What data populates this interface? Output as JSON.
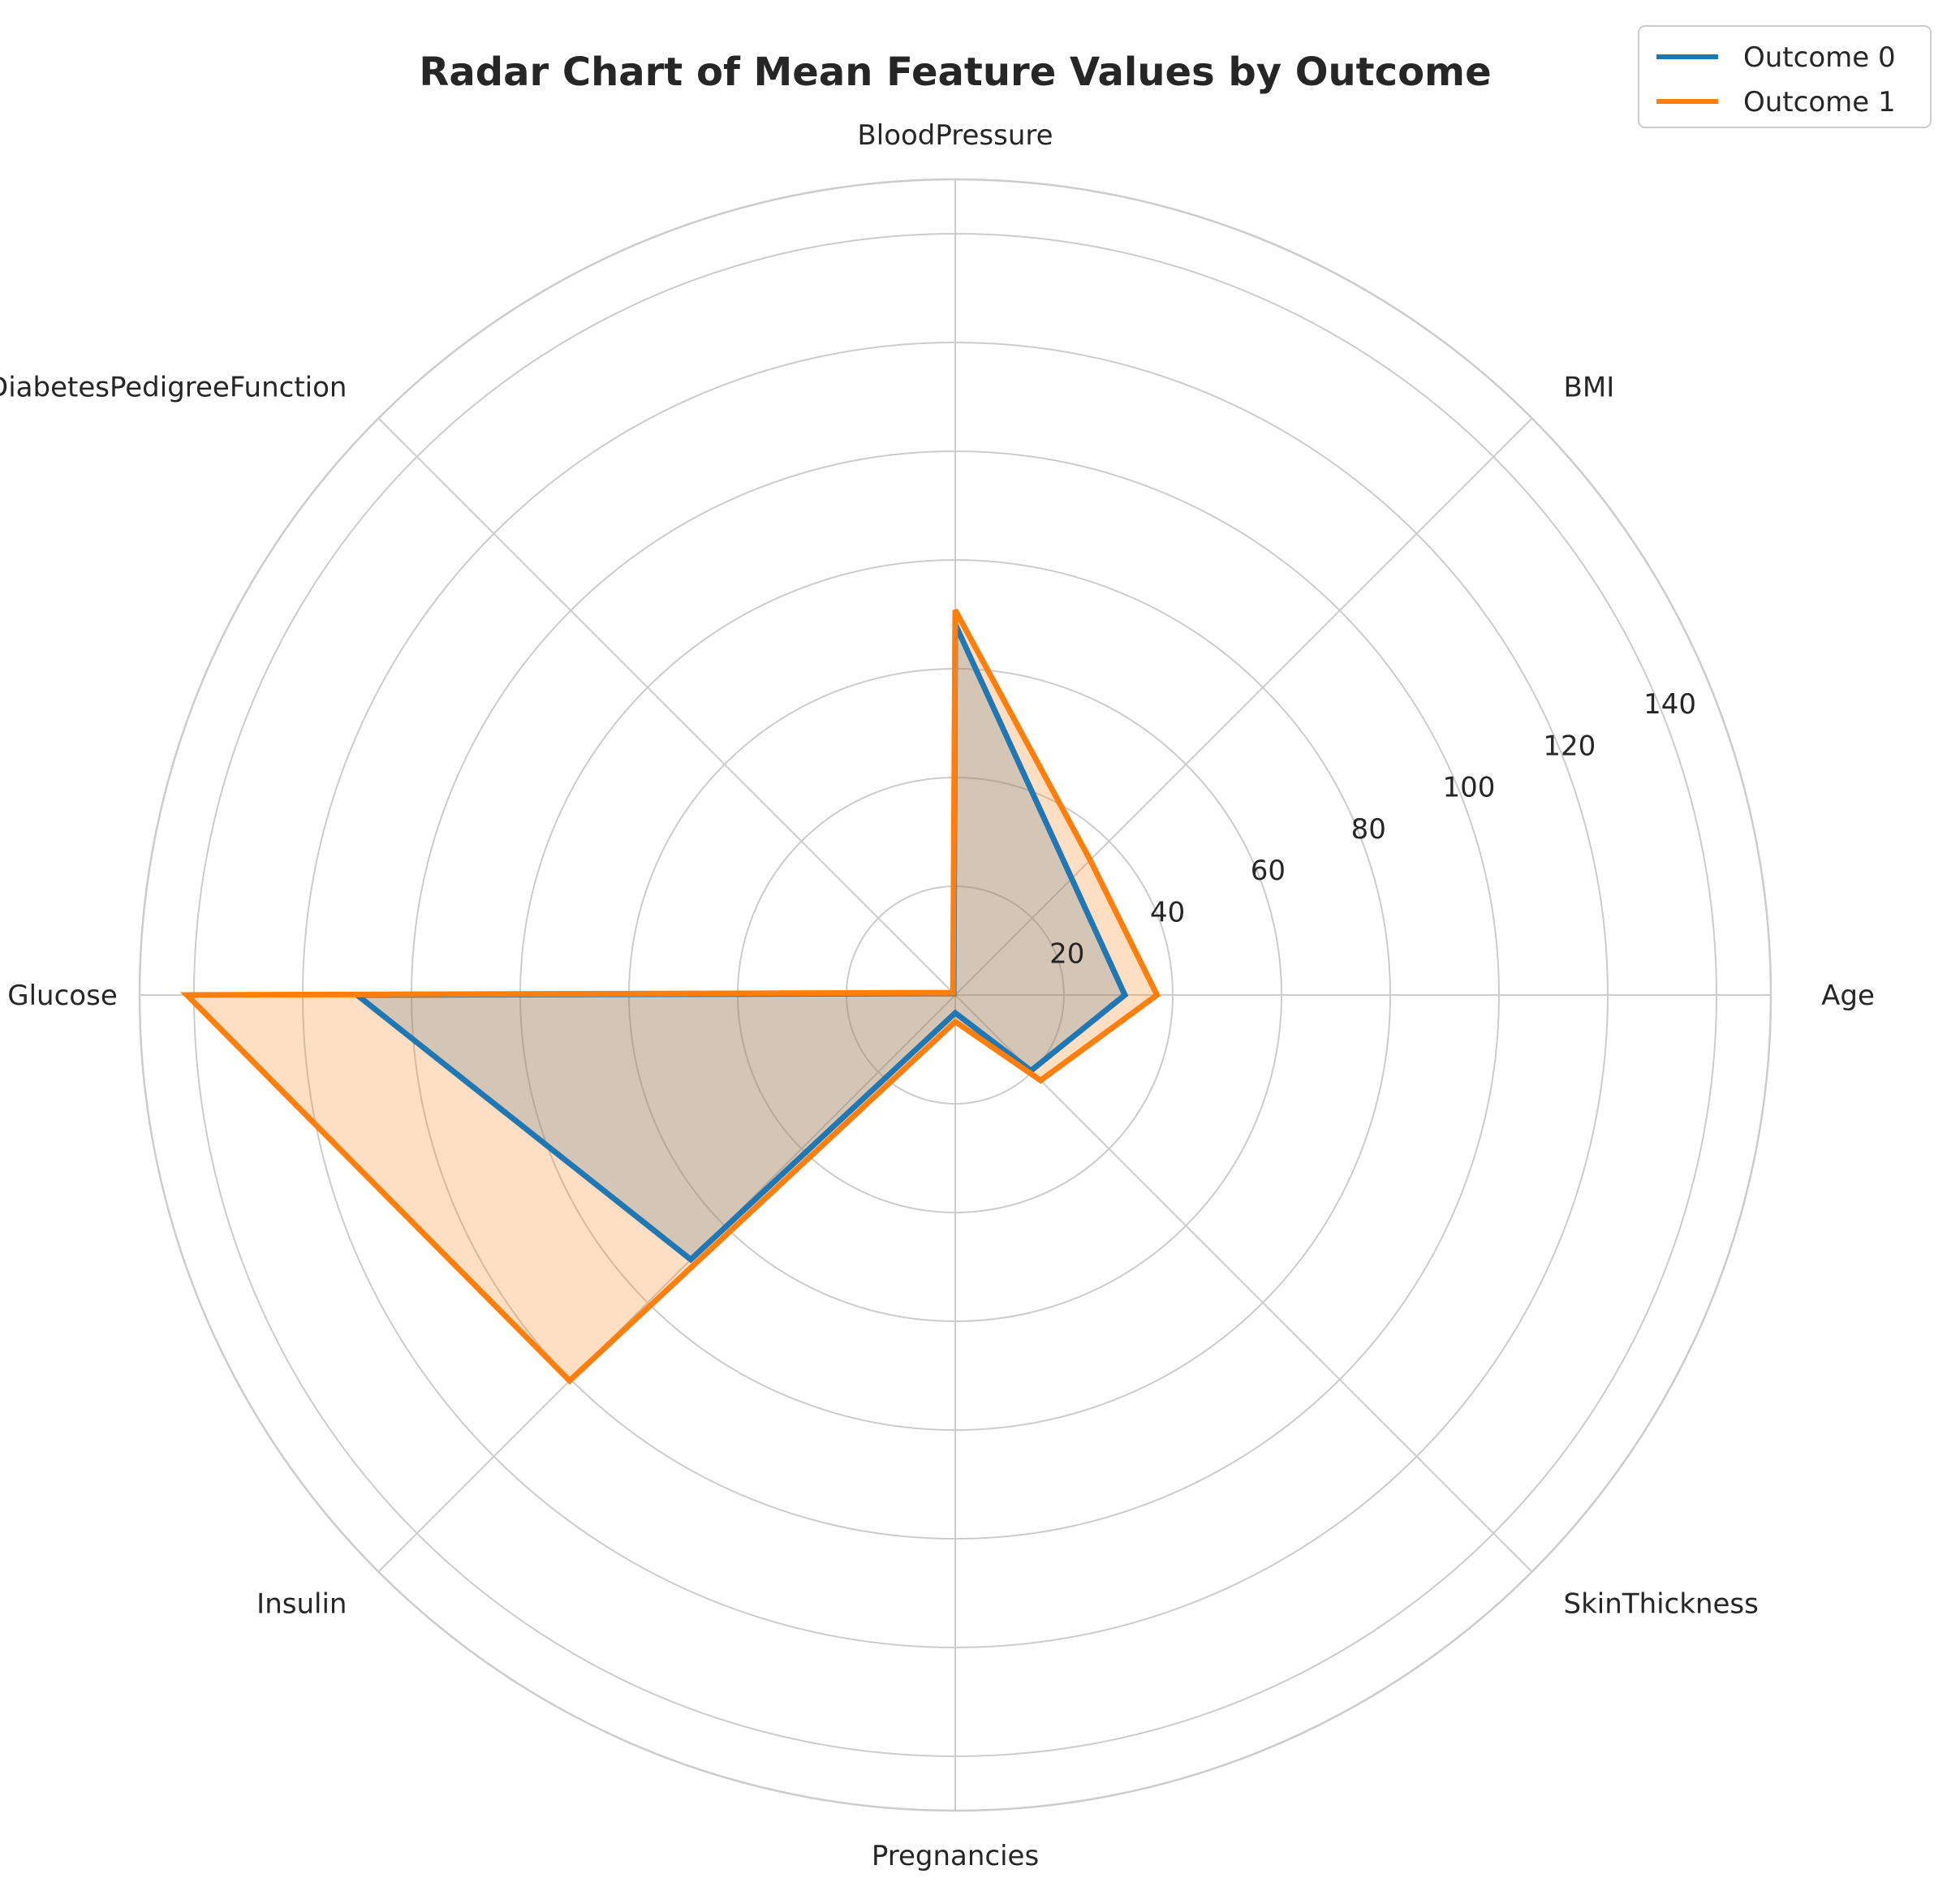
{
  "chart_data": {
    "type": "radar",
    "title": "Radar Chart of Mean Feature Values by Outcome",
    "categories": [
      "Age",
      "BMI",
      "BloodPressure",
      "DiabetesPedigreeFunction",
      "Glucose",
      "Insulin",
      "Pregnancies",
      "SkinThickness"
    ],
    "rlim": [
      0,
      150
    ],
    "rticks": [
      20,
      40,
      60,
      80,
      100,
      120,
      140
    ],
    "rtick_labels": [
      "20",
      "40",
      "60",
      "80",
      "100",
      "120",
      "140"
    ],
    "grid": true,
    "legend_position": "top-right",
    "series": [
      {
        "name": "Outcome 0",
        "color": "#1f77b4",
        "values": [
          31.2,
          30.3,
          68.2,
          0.4,
          110.0,
          68.8,
          3.3,
          19.7
        ]
      },
      {
        "name": "Outcome 1",
        "color": "#ff7f0e",
        "values": [
          37.1,
          35.1,
          70.8,
          0.6,
          141.3,
          100.3,
          4.9,
          22.2
        ]
      }
    ]
  }
}
